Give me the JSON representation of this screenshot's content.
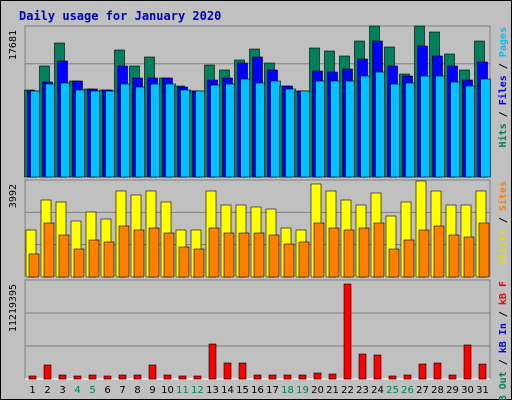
{
  "chart_data": {
    "type": "bar",
    "title": "Daily usage for January 2020",
    "categories": [
      "1",
      "2",
      "3",
      "4",
      "5",
      "6",
      "7",
      "8",
      "9",
      "10",
      "11",
      "12",
      "13",
      "14",
      "15",
      "16",
      "17",
      "18",
      "19",
      "20",
      "21",
      "22",
      "23",
      "24",
      "25",
      "26",
      "27",
      "28",
      "29",
      "30",
      "31"
    ],
    "weekend_days": [
      4,
      5,
      11,
      12,
      18,
      19,
      25,
      26
    ],
    "panels": [
      {
        "name": "top",
        "max_label": "17681",
        "ymax": 17681,
        "right_label_parts": [
          {
            "text": "Hits",
            "color": "#00805c"
          },
          {
            "text": " / ",
            "color": "#000000"
          },
          {
            "text": "Files",
            "color": "#0000ff"
          },
          {
            "text": " / ",
            "color": "#000000"
          },
          {
            "text": "Pages",
            "color": "#00c0ff"
          }
        ],
        "series": [
          {
            "name": "Hits",
            "color": "#00805c",
            "values": [
              10460,
              13300,
              16100,
              11600,
              10600,
              10500,
              15300,
              13300,
              14400,
              11900,
              11000,
              10400,
              13500,
              12900,
              14100,
              15400,
              13700,
              11000,
              10400,
              15500,
              15200,
              14600,
              16300,
              18200,
              15600,
              12400,
              18200,
              17500,
              14800,
              12900,
              16300
            ]
          },
          {
            "text": "",
            "name": "Files",
            "color": "#0000ff",
            "values": [
              10400,
              11400,
              14000,
              11600,
              10600,
              10500,
              13400,
              11900,
              11900,
              11900,
              10800,
              10400,
              11700,
              11900,
              13700,
              14400,
              12900,
              11000,
              10300,
              12800,
              12600,
              13000,
              14200,
              16300,
              13400,
              12200,
              15800,
              14600,
              13300,
              11700,
              13800
            ]
          },
          {
            "name": "Pages",
            "color": "#00c0ff",
            "values": [
              10300,
              11200,
              11300,
              10500,
              10400,
              10400,
              11200,
              10800,
              11200,
              11200,
              10500,
              10300,
              11100,
              11200,
              11800,
              11300,
              11600,
              10600,
              10300,
              11600,
              11600,
              11500,
              12200,
              12600,
              11200,
              11300,
              12200,
              12100,
              11400,
              11000,
              11800
            ]
          }
        ]
      },
      {
        "name": "middle",
        "max_label": "3992",
        "ymax": 3992,
        "right_label_parts": [
          {
            "text": "Visits",
            "color": "#e0e000"
          },
          {
            "text": " / ",
            "color": "#000000"
          },
          {
            "text": "Sites",
            "color": "#ff8000"
          }
        ],
        "series": [
          {
            "name": "Visits",
            "color": "#ffff00",
            "values": [
              2000,
              3300,
              3200,
              2400,
              2800,
              2500,
              3700,
              3500,
              3700,
              3200,
              2000,
              2000,
              3700,
              3100,
              3100,
              3000,
              2900,
              2100,
              2000,
              4000,
              3700,
              3300,
              3100,
              3600,
              2600,
              3200,
              4100,
              3700,
              3100,
              3100,
              3700
            ]
          },
          {
            "name": "Sites",
            "color": "#ff8000",
            "values": [
              1000,
              2300,
              1800,
              1200,
              1600,
              1500,
              2200,
              2000,
              2100,
              1900,
              1300,
              1200,
              2100,
              1900,
              1900,
              1900,
              1800,
              1400,
              1500,
              2300,
              2100,
              2000,
              2100,
              2300,
              1200,
              1600,
              2000,
              2200,
              1800,
              1700,
              2300
            ]
          }
        ]
      },
      {
        "name": "bottom",
        "max_label": "11219395",
        "ymax": 11219395,
        "right_label_parts": [
          {
            "text": "kB Out",
            "color": "#00805c"
          },
          {
            "text": " / ",
            "color": "#000000"
          },
          {
            "text": "kB In",
            "color": "#0000ff"
          },
          {
            "text": " / ",
            "color": "#000000"
          },
          {
            "text": "kB F",
            "color": "#ff0000"
          }
        ],
        "series": [
          {
            "name": "kB F",
            "color": "#ff0000",
            "values": [
              380000,
              1600000,
              420000,
              380000,
              420000,
              350000,
              480000,
              480000,
              1700000,
              470000,
              350000,
              380000,
              4100000,
              1850000,
              1850000,
              450000,
              430000,
              420000,
              420000,
              650000,
              620000,
              11219395,
              2900000,
              2800000,
              330000,
              460000,
              1750000,
              1850000,
              460000,
              4000000,
              1750000
            ]
          }
        ]
      }
    ]
  }
}
